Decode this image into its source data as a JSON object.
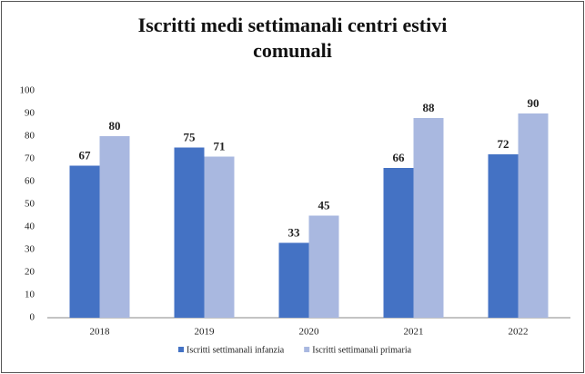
{
  "chart_data": {
    "type": "bar",
    "title": "Iscritti medi settimanali centri estivi comunali",
    "categories": [
      "2018",
      "2019",
      "2020",
      "2021",
      "2022"
    ],
    "series": [
      {
        "name": "Iscritti settimanali infanzia",
        "color": "#4472c4",
        "values": [
          67,
          75,
          33,
          66,
          72
        ]
      },
      {
        "name": "Iscritti settimanali primaria",
        "color": "#a9b8e0",
        "values": [
          80,
          71,
          45,
          88,
          90
        ]
      }
    ],
    "ylim": [
      0,
      100
    ],
    "yticks": [
      0,
      10,
      20,
      30,
      40,
      50,
      60,
      70,
      80,
      90,
      100
    ],
    "grid": false,
    "legend": "bottom"
  }
}
